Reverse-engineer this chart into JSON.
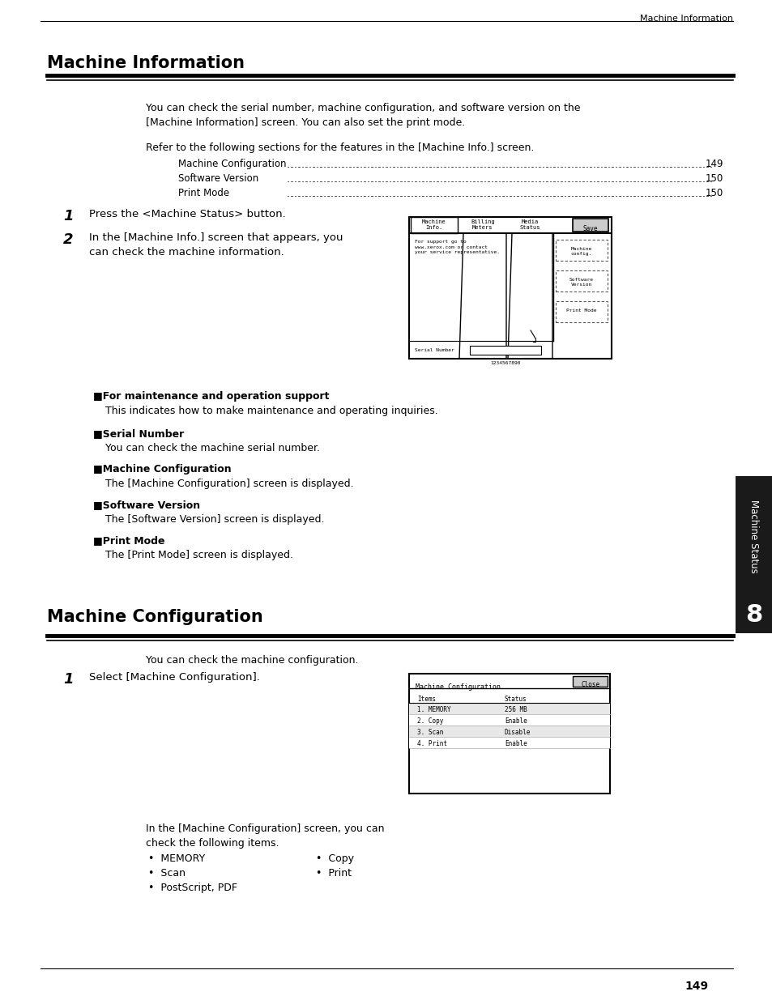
{
  "page_header_text": "Machine Information",
  "section1_title": "Machine Information",
  "section1_body1": "You can check the serial number, machine configuration, and software version on the\n[Machine Information] screen. You can also set the print mode.",
  "section1_body2": "Refer to the following sections for the features in the [Machine Info.] screen.",
  "toc_items": [
    [
      "Machine Configuration",
      "149"
    ],
    [
      "Software Version",
      "150"
    ],
    [
      "Print Mode",
      "150"
    ]
  ],
  "step1_text": "Press the <Machine Status> button.",
  "step2_text": "In the [Machine Info.] screen that appears, you\ncan check the machine information.",
  "subsection1_title": "For maintenance and operation support",
  "subsection1_body": "This indicates how to make maintenance and operating inquiries.",
  "subsection2_title": "Serial Number",
  "subsection2_body": "You can check the machine serial number.",
  "subsection3_title": "Machine Configuration",
  "subsection3_body": "The [Machine Configuration] screen is displayed.",
  "subsection4_title": "Software Version",
  "subsection4_body": "The [Software Version] screen is displayed.",
  "subsection5_title": "Print Mode",
  "subsection5_body": "The [Print Mode] screen is displayed.",
  "section2_title": "Machine Configuration",
  "section2_body1": "You can check the machine configuration.",
  "section2_step1": "Select [Machine Configuration].",
  "section2_body2": "In the [Machine Configuration] screen, you can\ncheck the following items.",
  "bullet_items_left": [
    "MEMORY",
    "Scan",
    "PostScript, PDF"
  ],
  "bullet_items_right": [
    "Copy",
    "Print"
  ],
  "table_rows": [
    [
      "1. MEMORY",
      "256 MB"
    ],
    [
      "2. Copy",
      "Enable"
    ],
    [
      "3. Scan",
      "Disable"
    ],
    [
      "4. Print",
      "Enable"
    ]
  ],
  "page_number": "149",
  "side_label": "Machine Status",
  "side_number": "8",
  "bg_color": "#ffffff",
  "text_color": "#000000"
}
